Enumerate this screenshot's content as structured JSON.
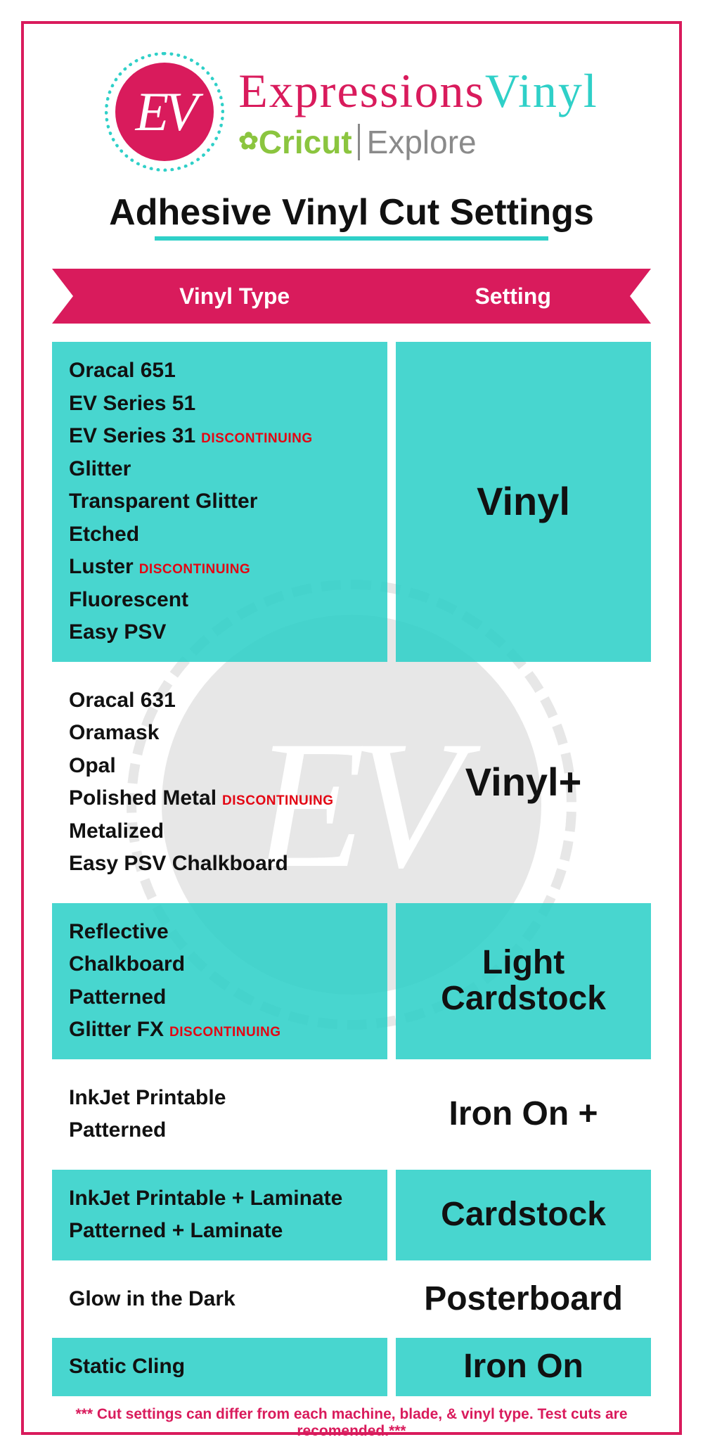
{
  "brand": {
    "badge_text": "EV",
    "expressions_pink": "Expressions",
    "expressions_teal": "Vinyl",
    "cricut": "Cricut",
    "explore": "Explore"
  },
  "title": "Adhesive Vinyl Cut Settings",
  "ribbon": {
    "col1": "Vinyl Type",
    "col2": "Setting"
  },
  "discontinuing_label": "DISCONTINUING",
  "colors": {
    "accent_pink": "#d91b5c",
    "accent_teal": "#2fd0c8",
    "accent_green": "#8bc53f",
    "accent_red": "#e30613",
    "text": "#111111",
    "watermark": "#bdbdbd"
  },
  "rows": [
    {
      "bg": "teal",
      "items": [
        {
          "name": "Oracal 651"
        },
        {
          "name": "EV Series 51"
        },
        {
          "name": "EV Series 31",
          "disc": true
        },
        {
          "name": "Glitter"
        },
        {
          "name": "Transparent Glitter"
        },
        {
          "name": "Etched"
        },
        {
          "name": "Luster",
          "disc": true
        },
        {
          "name": "Fluorescent"
        },
        {
          "name": "Easy PSV"
        }
      ],
      "setting": "Vinyl",
      "setting_size": "lg"
    },
    {
      "bg": "none",
      "items": [
        {
          "name": "Oracal 631"
        },
        {
          "name": "Oramask"
        },
        {
          "name": "Opal"
        },
        {
          "name": "Polished Metal",
          "disc": true
        },
        {
          "name": "Metalized"
        },
        {
          "name": "Easy PSV Chalkboard"
        }
      ],
      "setting": "Vinyl+",
      "setting_size": "lg"
    },
    {
      "bg": "teal",
      "items": [
        {
          "name": "Reflective"
        },
        {
          "name": "Chalkboard"
        },
        {
          "name": "Patterned"
        },
        {
          "name": "Glitter FX",
          "disc": true
        }
      ],
      "setting": "Light Cardstock",
      "setting_size": "md"
    },
    {
      "bg": "none",
      "items": [
        {
          "name": "InkJet Printable"
        },
        {
          "name": "Patterned"
        }
      ],
      "setting": "Iron On +",
      "setting_size": "md"
    },
    {
      "bg": "teal",
      "items": [
        {
          "name": "InkJet Printable + Laminate"
        },
        {
          "name": "Patterned + Laminate"
        }
      ],
      "setting": "Cardstock",
      "setting_size": "md"
    },
    {
      "bg": "none",
      "items": [
        {
          "name": "Glow in the Dark"
        }
      ],
      "setting": "Posterboard",
      "setting_size": "md"
    },
    {
      "bg": "teal",
      "items": [
        {
          "name": "Static Cling"
        }
      ],
      "setting": "Iron On",
      "setting_size": "md"
    }
  ],
  "footnote": "*** Cut settings can differ from each machine, blade, & vinyl type. Test cuts are recomended.***",
  "watermark": "EV"
}
